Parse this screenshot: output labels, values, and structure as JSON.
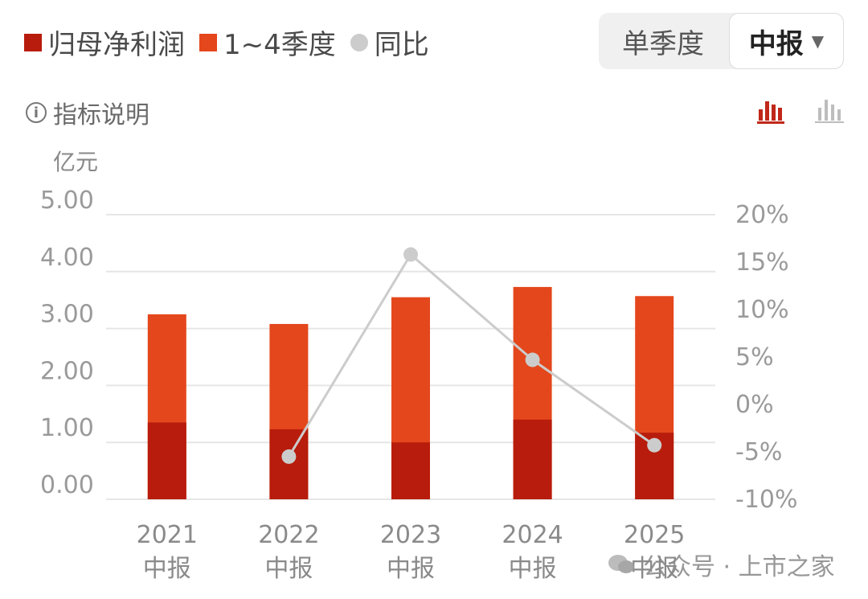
{
  "legend": {
    "net_profit": "归母净利润",
    "quarters": "1~4季度",
    "yoy": "同比"
  },
  "period": {
    "single_quarter": "单季度",
    "selected": "中报"
  },
  "info_label": "指标说明",
  "unit_label": "亿元",
  "watermark": "公众号 · 上市之家",
  "colors": {
    "net_profit": "#b81c0c",
    "quarters": "#e4471c",
    "yoy": "#cccccc",
    "icon_active": "#c0281a",
    "icon_inactive": "#bdbdbd"
  },
  "chart_data": {
    "type": "bar",
    "categories": [
      "2021\n中报",
      "2022\n中报",
      "2023\n中报",
      "2024\n中报",
      "2025\n中报"
    ],
    "series": [
      {
        "name": "归母净利润",
        "values": [
          1.35,
          1.23,
          1.0,
          1.4,
          1.17
        ]
      },
      {
        "name": "1~4季度",
        "values": [
          3.25,
          3.08,
          3.55,
          3.73,
          3.57
        ]
      },
      {
        "name": "同比",
        "values": [
          null,
          -5.5,
          15.8,
          4.7,
          -4.3
        ]
      }
    ],
    "ylabel": "亿元",
    "ylim": [
      0,
      5
    ],
    "yticks": [
      "0.00",
      "1.00",
      "2.00",
      "3.00",
      "4.00",
      "5.00"
    ],
    "y2lim": [
      -10,
      20
    ],
    "y2ticks": [
      "-10%",
      "-5%",
      "0%",
      "5%",
      "10%",
      "15%",
      "20%"
    ],
    "grid": true,
    "legend_position": "top-left"
  }
}
